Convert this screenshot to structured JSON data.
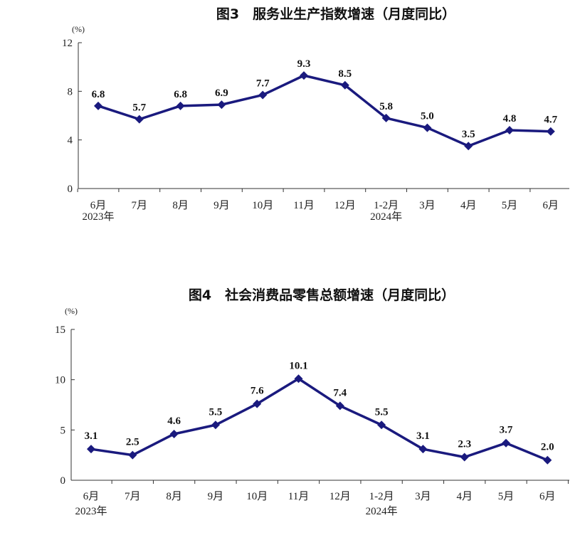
{
  "charts": {
    "month_labels": [
      "6月",
      "7月",
      "8月",
      "9月",
      "10月",
      "11月",
      "12月",
      "1-2月",
      "3月",
      "4月",
      "5月",
      "6月"
    ],
    "year_labels": [
      "2023年",
      "2024年"
    ],
    "line_color": "#1a1a7e"
  },
  "chart_data": [
    {
      "type": "line",
      "title": "图3　服务业生产指数增速（月度同比）",
      "ylabel": "(%)",
      "xlabel": "",
      "categories": [
        "6月",
        "7月",
        "8月",
        "9月",
        "10月",
        "11月",
        "12月",
        "1-2月",
        "3月",
        "4月",
        "5月",
        "6月"
      ],
      "values": [
        6.8,
        5.7,
        6.8,
        6.9,
        7.7,
        9.3,
        8.5,
        5.8,
        5.0,
        3.5,
        4.8,
        4.7
      ],
      "data_labels": [
        "6.8",
        "5.7",
        "6.8",
        "6.9",
        "7.7",
        "9.3",
        "8.5",
        "5.8",
        "5.0",
        "3.5",
        "4.8",
        "4.7"
      ],
      "ylim": [
        0,
        12
      ],
      "yticks": [
        0,
        4,
        8,
        12
      ],
      "year_labels": [
        {
          "text": "2023年",
          "at_index": 0
        },
        {
          "text": "2024年",
          "at_index": 7
        }
      ],
      "marker": "diamond",
      "grid": false,
      "color": "#1a1a7e"
    },
    {
      "type": "line",
      "title": "图4　社会消费品零售总额增速（月度同比）",
      "ylabel": "(%)",
      "xlabel": "",
      "categories": [
        "6月",
        "7月",
        "8月",
        "9月",
        "10月",
        "11月",
        "12月",
        "1-2月",
        "3月",
        "4月",
        "5月",
        "6月"
      ],
      "values": [
        3.1,
        2.5,
        4.6,
        5.5,
        7.6,
        10.1,
        7.4,
        5.5,
        3.1,
        2.3,
        3.7,
        2.0
      ],
      "data_labels": [
        "3.1",
        "2.5",
        "4.6",
        "5.5",
        "7.6",
        "10.1",
        "7.4",
        "5.5",
        "3.1",
        "2.3",
        "3.7",
        "2.0"
      ],
      "ylim": [
        0,
        15
      ],
      "yticks": [
        0,
        5,
        10,
        15
      ],
      "year_labels": [
        {
          "text": "2023年",
          "at_index": 0
        },
        {
          "text": "2024年",
          "at_index": 7
        }
      ],
      "marker": "diamond",
      "grid": false,
      "color": "#1a1a7e"
    }
  ]
}
